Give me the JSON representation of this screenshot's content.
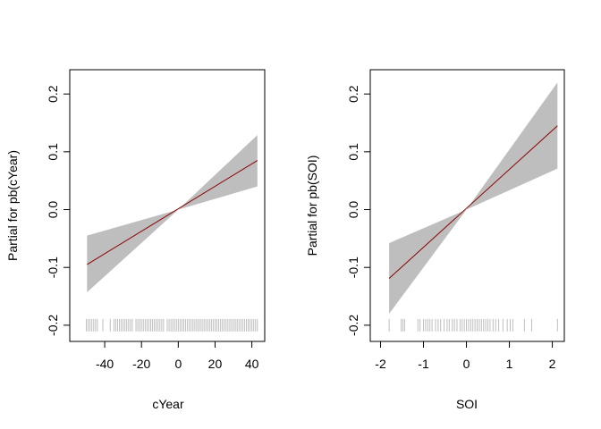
{
  "chart_data": [
    {
      "type": "line",
      "xlabel": "cYear",
      "ylabel": "Partial for pb(cYear)",
      "xticks": [
        -40,
        -20,
        0,
        20,
        40
      ],
      "yticks": [
        -0.2,
        -0.1,
        0.0,
        0.1,
        0.2
      ],
      "ytick_labels": [
        "-0.2",
        "-0.1",
        "0.0",
        "0.1",
        "0.2"
      ],
      "xlim": [
        -59,
        47
      ],
      "ylim": [
        -0.228,
        0.242
      ],
      "fit": {
        "x": [
          -49.6,
          43
        ],
        "y": [
          -0.095,
          0.085
        ],
        "color": "#8b0000"
      },
      "band": {
        "x": [
          -49.6,
          0,
          43
        ],
        "lower": [
          -0.143,
          0.0,
          0.04
        ],
        "upper": [
          -0.045,
          0.0,
          0.129
        ],
        "color": "#bebebe"
      },
      "rug": [
        -50,
        -49,
        -48,
        -47,
        -46,
        -45,
        -44,
        -41,
        -37,
        -35,
        -34,
        -33,
        -32,
        -31,
        -30,
        -29,
        -28,
        -27,
        -26,
        -25,
        -23,
        -22,
        -21,
        -20,
        -19,
        -18,
        -17,
        -16,
        -15,
        -14,
        -13,
        -12,
        -11,
        -10,
        -9,
        -8,
        -6,
        -5,
        -4,
        -3,
        -2,
        -1,
        0,
        1,
        2,
        3,
        4,
        5,
        6,
        7,
        8,
        9,
        10,
        11,
        12,
        13,
        14,
        15,
        16,
        17,
        18,
        19,
        20,
        21,
        22,
        23,
        24,
        25,
        26,
        27,
        28,
        29,
        30,
        31,
        32,
        33,
        34,
        35,
        36,
        37,
        38,
        39,
        40,
        41,
        42,
        43
      ],
      "rug_color": "#bebebe"
    },
    {
      "type": "line",
      "xlabel": "SOI",
      "ylabel": "Partial for pb(SOI)",
      "xticks": [
        -2,
        -1,
        0,
        1,
        2
      ],
      "yticks": [
        -0.2,
        -0.1,
        0.0,
        0.1,
        0.2
      ],
      "ytick_labels": [
        "-0.2",
        "-0.1",
        "0.0",
        "0.1",
        "0.2"
      ],
      "xlim": [
        -2.24,
        2.28
      ],
      "ylim": [
        -0.228,
        0.242
      ],
      "fit": {
        "x": [
          -1.8,
          2.12
        ],
        "y": [
          -0.119,
          0.145
        ],
        "color": "#8b0000"
      },
      "band": {
        "x": [
          -1.8,
          0,
          2.12
        ],
        "lower": [
          -0.18,
          0.0,
          0.071
        ],
        "upper": [
          -0.058,
          0.0,
          0.22
        ],
        "color": "#bebebe"
      },
      "rug": [
        -1.8,
        -1.52,
        -1.48,
        -1.44,
        -1.13,
        -1.08,
        -1.0,
        -0.95,
        -0.9,
        -0.85,
        -0.8,
        -0.72,
        -0.66,
        -0.6,
        -0.52,
        -0.45,
        -0.4,
        -0.33,
        -0.28,
        -0.22,
        -0.15,
        -0.1,
        -0.05,
        0,
        0.05,
        0.1,
        0.15,
        0.2,
        0.25,
        0.3,
        0.35,
        0.4,
        0.45,
        0.5,
        0.55,
        0.62,
        0.68,
        0.75,
        0.85,
        0.95,
        1.02,
        1.08,
        1.35,
        1.52,
        2.12
      ],
      "rug_color": "#bebebe"
    }
  ]
}
